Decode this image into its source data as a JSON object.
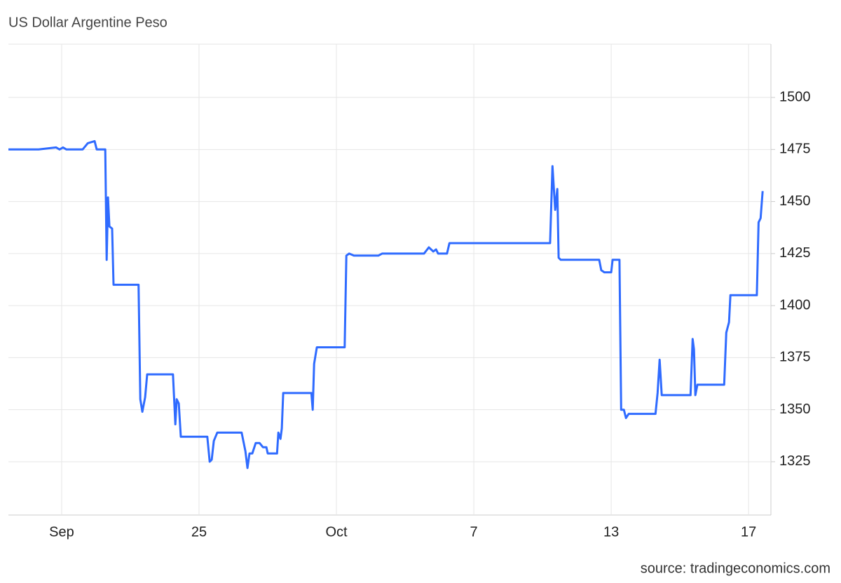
{
  "chart_data": {
    "type": "line",
    "title": "US Dollar Argentine Peso",
    "source": "source: tradingeconomics.com",
    "color": "#2f6bff",
    "grid": true,
    "xlim": [
      -1.55,
      20.65
    ],
    "ylim": [
      1299.4,
      1525.6
    ],
    "xticks": [
      {
        "value": 0,
        "label": "Sep"
      },
      {
        "value": 4,
        "label": "25"
      },
      {
        "value": 8,
        "label": "Oct"
      },
      {
        "value": 12,
        "label": "7"
      },
      {
        "value": 16,
        "label": "13"
      },
      {
        "value": 20,
        "label": "17"
      }
    ],
    "yticks": [
      1325,
      1350,
      1375,
      1400,
      1425,
      1450,
      1475,
      1500
    ],
    "x": [
      -1.55,
      -0.67,
      -0.16,
      -0.06,
      0.04,
      0.14,
      0.35,
      0.61,
      0.76,
      0.96,
      1.02,
      1.27,
      1.31,
      1.35,
      1.39,
      1.47,
      1.51,
      2.24,
      2.29,
      2.35,
      2.43,
      2.49,
      3.24,
      3.31,
      3.35,
      3.41,
      3.47,
      4.24,
      4.31,
      4.37,
      4.43,
      4.53,
      5.24,
      5.35,
      5.41,
      5.47,
      5.55,
      5.65,
      5.76,
      5.86,
      5.96,
      6.0,
      6.27,
      6.31,
      6.37,
      6.41,
      6.45,
      7.27,
      7.31,
      7.35,
      7.43,
      7.49,
      8.24,
      8.29,
      8.37,
      8.51,
      9.22,
      9.33,
      10.55,
      10.69,
      10.82,
      10.9,
      10.96,
      11.22,
      11.29,
      14.22,
      14.29,
      14.37,
      14.43,
      14.47,
      14.53,
      15.65,
      15.71,
      15.8,
      16.0,
      16.04,
      16.24,
      16.29,
      16.37,
      16.43,
      16.51,
      17.29,
      17.35,
      17.41,
      17.47,
      18.31,
      18.37,
      18.41,
      18.45,
      18.51,
      19.29,
      19.35,
      19.43,
      19.47,
      20.24,
      20.29,
      20.35,
      20.41
    ],
    "values": [
      1475,
      1475,
      1476,
      1475,
      1476,
      1475,
      1475,
      1475,
      1478,
      1479,
      1475,
      1475,
      1422,
      1452,
      1438,
      1437,
      1410,
      1410,
      1355,
      1349,
      1356,
      1367,
      1367,
      1343,
      1355,
      1353,
      1337,
      1337,
      1325,
      1326,
      1335,
      1339,
      1339,
      1330,
      1322,
      1329,
      1329,
      1334,
      1334,
      1332,
      1332,
      1329,
      1329,
      1339,
      1336,
      1341,
      1358,
      1358,
      1350,
      1372,
      1380,
      1380,
      1380,
      1424,
      1425,
      1424,
      1424,
      1425,
      1425,
      1428,
      1426,
      1427,
      1425,
      1425,
      1430,
      1430,
      1467,
      1446,
      1456,
      1423,
      1422,
      1422,
      1417,
      1416,
      1416,
      1422,
      1422,
      1350,
      1350,
      1346,
      1348,
      1348,
      1358,
      1374,
      1357,
      1357,
      1384,
      1379,
      1357,
      1362,
      1362,
      1387,
      1392,
      1405,
      1405,
      1440,
      1442,
      1455
    ]
  }
}
